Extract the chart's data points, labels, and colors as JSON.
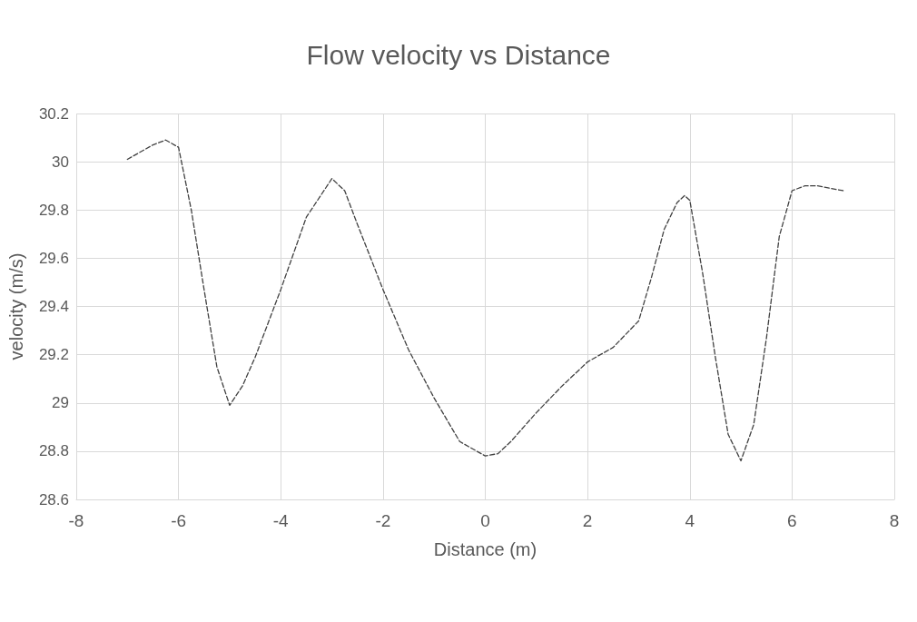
{
  "chart_data": {
    "type": "line",
    "title": "Flow velocity vs Distance",
    "xlabel": "Distance (m)",
    "ylabel": "velocity (m/s)",
    "xlim": [
      -8,
      8
    ],
    "xticks": [
      -8,
      -6,
      -4,
      -2,
      0,
      2,
      4,
      6,
      8
    ],
    "ylim": [
      28.6,
      30.2
    ],
    "yticks": [
      28.6,
      28.8,
      29,
      29.2,
      29.4,
      29.6,
      29.8,
      30,
      30.2
    ],
    "grid": true,
    "marker": "none",
    "line_style": "dashed",
    "x": [
      -7,
      -6.5,
      -6.25,
      -6,
      -5.75,
      -5.5,
      -5.25,
      -5,
      -4.75,
      -4.5,
      -4,
      -3.5,
      -3,
      -2.75,
      -2.5,
      -2,
      -1.5,
      -1,
      -0.5,
      0,
      0.25,
      0.5,
      1,
      1.5,
      2,
      2.5,
      3,
      3.25,
      3.5,
      3.75,
      3.9,
      4,
      4.25,
      4.5,
      4.75,
      5,
      5.25,
      5.5,
      5.75,
      6,
      6.25,
      6.5,
      7
    ],
    "series": [
      {
        "color": "#404040",
        "values": [
          30.01,
          30.07,
          30.09,
          30.06,
          29.8,
          29.47,
          29.15,
          28.99,
          29.07,
          29.19,
          29.47,
          29.77,
          29.93,
          29.88,
          29.74,
          29.47,
          29.22,
          29.02,
          28.84,
          28.78,
          28.79,
          28.84,
          28.96,
          29.07,
          29.17,
          29.23,
          29.34,
          29.52,
          29.72,
          29.83,
          29.86,
          29.84,
          29.54,
          29.19,
          28.87,
          28.76,
          28.91,
          29.27,
          29.69,
          29.88,
          29.9,
          29.9,
          29.88
        ]
      }
    ]
  }
}
